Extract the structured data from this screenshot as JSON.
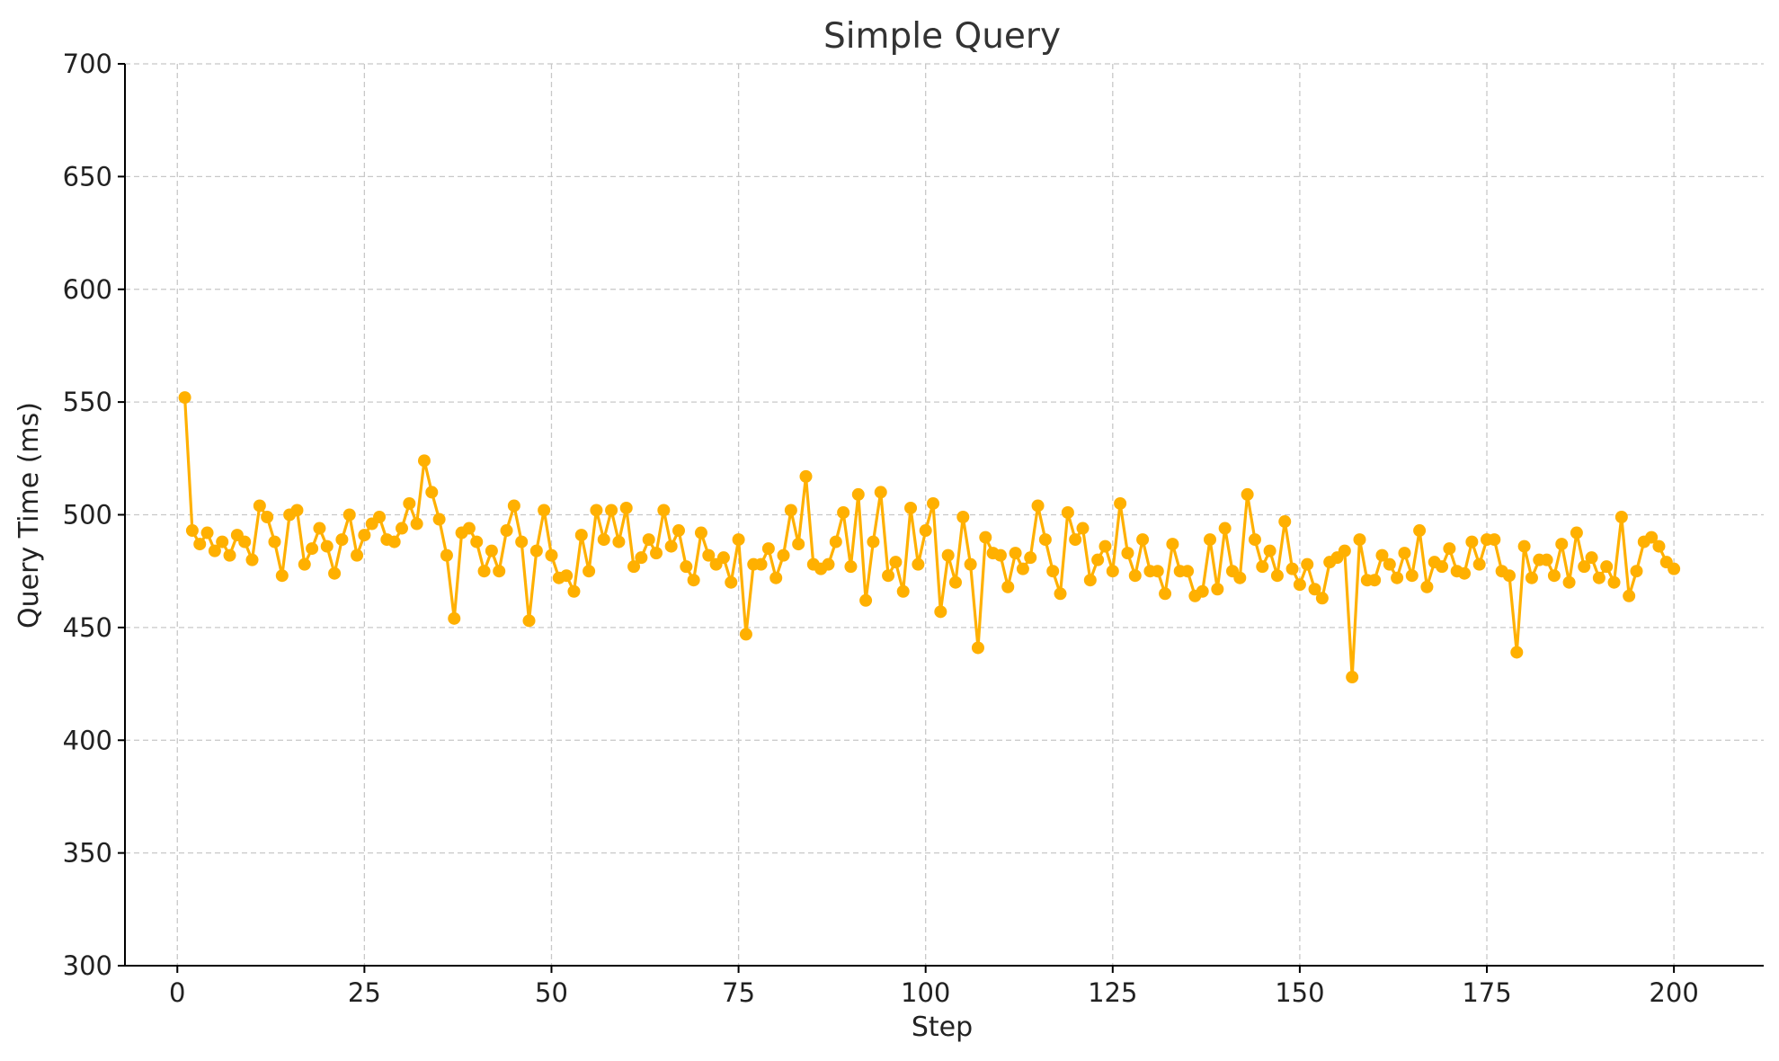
{
  "chart_data": {
    "type": "line",
    "title": "Simple Query",
    "xlabel": "Step",
    "ylabel": "Query Time (ms)",
    "xlim": [
      -7,
      212
    ],
    "ylim": [
      300,
      700
    ],
    "xticks": [
      0,
      25,
      50,
      75,
      100,
      125,
      150,
      175,
      200
    ],
    "yticks": [
      300,
      350,
      400,
      450,
      500,
      550,
      600,
      650,
      700
    ],
    "grid": true,
    "color": "#FFB000",
    "markers": true,
    "series": [
      {
        "x": [
          1,
          2,
          3,
          4,
          5,
          6,
          7,
          8,
          9,
          10,
          11,
          12,
          13,
          14,
          15,
          16,
          17,
          18,
          19,
          20,
          21,
          22,
          23,
          24,
          25,
          26,
          27,
          28,
          29,
          30,
          31,
          32,
          33,
          34,
          35,
          36,
          37,
          38,
          39,
          40,
          41,
          42,
          43,
          44,
          45,
          46,
          47,
          48,
          49,
          50,
          51,
          52,
          53,
          54,
          55,
          56,
          57,
          58,
          59,
          60,
          61,
          62,
          63,
          64,
          65,
          66,
          67,
          68,
          69,
          70,
          71,
          72,
          73,
          74,
          75,
          76,
          77,
          78,
          79,
          80,
          81,
          82,
          83,
          84,
          85,
          86,
          87,
          88,
          89,
          90,
          91,
          92,
          93,
          94,
          95,
          96,
          97,
          98,
          99,
          100,
          101,
          102,
          103,
          104,
          105,
          106,
          107,
          108,
          109,
          110,
          111,
          112,
          113,
          114,
          115,
          116,
          117,
          118,
          119,
          120,
          121,
          122,
          123,
          124,
          125,
          126,
          127,
          128,
          129,
          130,
          131,
          132,
          133,
          134,
          135,
          136,
          137,
          138,
          139,
          140,
          141,
          142,
          143,
          144,
          145,
          146,
          147,
          148,
          149,
          150,
          151,
          152,
          153,
          154,
          155,
          156,
          157,
          158,
          159,
          160,
          161,
          162,
          163,
          164,
          165,
          166,
          167,
          168,
          169,
          170,
          171,
          172,
          173,
          174,
          175,
          176,
          177,
          178,
          179,
          180,
          181,
          182,
          183,
          184,
          185,
          186,
          187,
          188,
          189,
          190,
          191,
          192,
          193,
          194,
          195,
          196,
          197,
          198,
          199,
          200
        ],
        "values": [
          552,
          493,
          487,
          492,
          484,
          488,
          482,
          491,
          488,
          480,
          504,
          499,
          488,
          473,
          500,
          502,
          478,
          485,
          494,
          486,
          474,
          489,
          500,
          482,
          491,
          496,
          499,
          489,
          488,
          494,
          505,
          496,
          524,
          510,
          498,
          482,
          454,
          492,
          494,
          488,
          475,
          484,
          475,
          493,
          504,
          488,
          453,
          484,
          502,
          482,
          472,
          473,
          466,
          491,
          475,
          502,
          489,
          502,
          488,
          503,
          477,
          481,
          489,
          483,
          502,
          486,
          493,
          477,
          471,
          492,
          482,
          478,
          481,
          470,
          489,
          447,
          478,
          478,
          485,
          472,
          482,
          502,
          487,
          517,
          478,
          476,
          478,
          488,
          501,
          477,
          509,
          462,
          488,
          510,
          473,
          479,
          466,
          503,
          478,
          493,
          505,
          457,
          482,
          470,
          499,
          478,
          441,
          490,
          483,
          482,
          468,
          483,
          476,
          481,
          504,
          489,
          475,
          465,
          501,
          489,
          494,
          471,
          480,
          486,
          475,
          505,
          483,
          473,
          489,
          475,
          475,
          465,
          487,
          475,
          475,
          464,
          466,
          489,
          467,
          494,
          475,
          472,
          509,
          489,
          477,
          484,
          473,
          497,
          476,
          469,
          478,
          467,
          463,
          479,
          481,
          484,
          428,
          489,
          471,
          471,
          482,
          478,
          472,
          483,
          473,
          493,
          468,
          479,
          477,
          485,
          475,
          474,
          488,
          478,
          489,
          489,
          475,
          473,
          439,
          486,
          472,
          480,
          480,
          473,
          487,
          470,
          492,
          477,
          481,
          472,
          477,
          470,
          499,
          464,
          475,
          488,
          490,
          486,
          479,
          476
        ]
      }
    ]
  }
}
